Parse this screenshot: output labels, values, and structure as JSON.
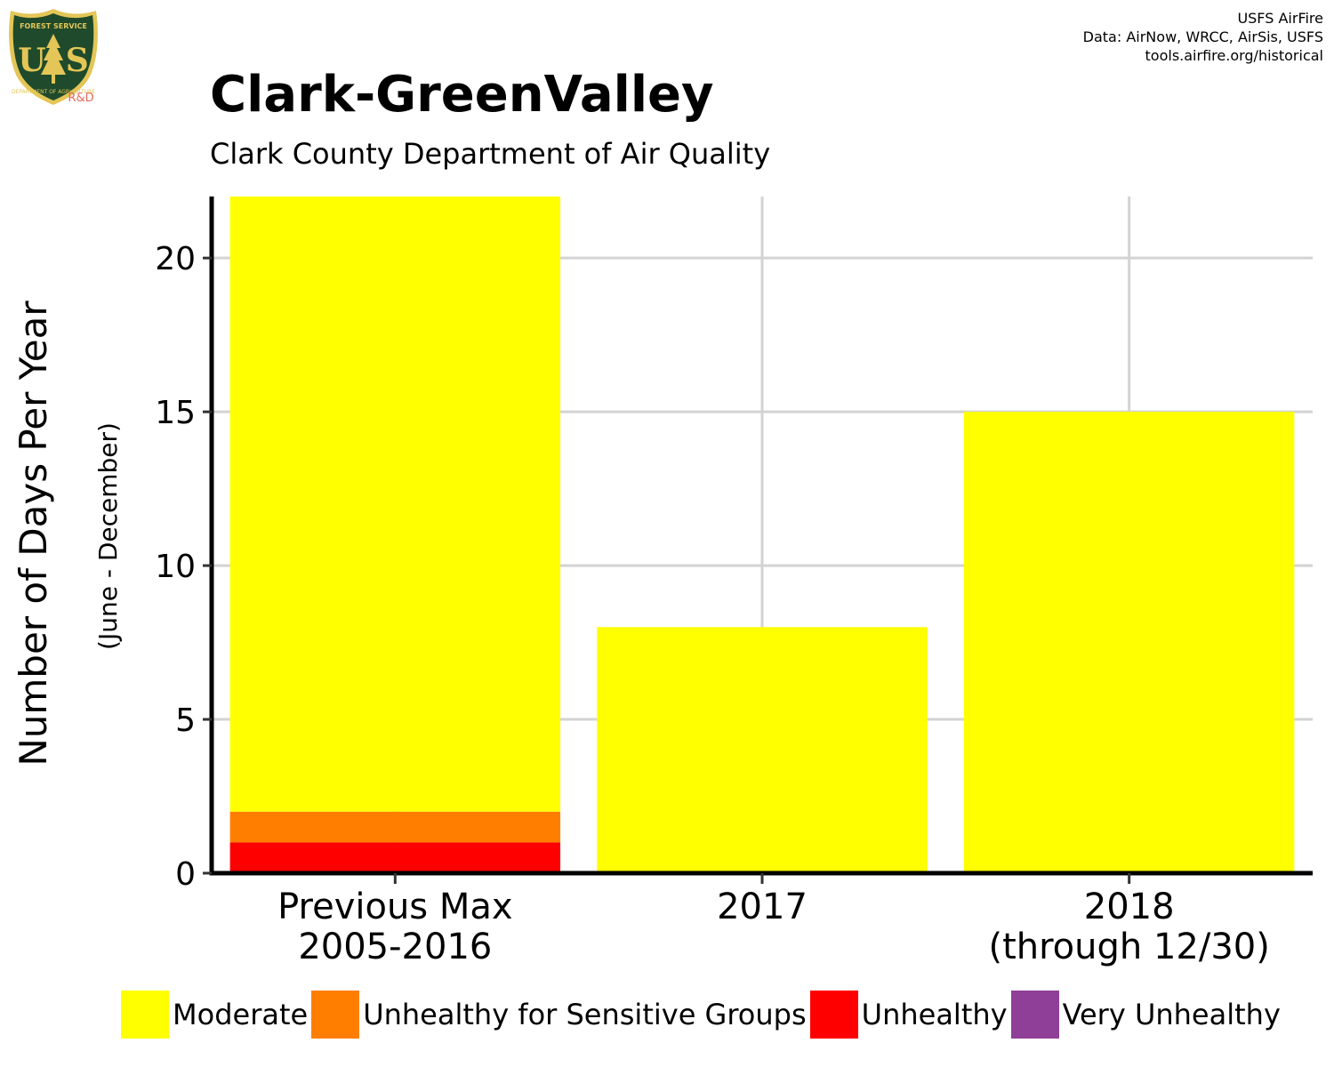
{
  "header": {
    "title": "Clark-GreenValley",
    "subtitle": "Clark County Department of Air Quality",
    "credits": [
      "USFS AirFire",
      "Data: AirNow, WRCC, AirSis, USFS",
      "tools.airfire.org/historical"
    ],
    "logo": {
      "top_text": "FOREST SERVICE",
      "letters": "US",
      "bottom_text": "DEPARTMENT OF AGRICULTURE",
      "tag": "R&D"
    }
  },
  "colors": {
    "Moderate": "#FFFF00",
    "Unhealthy for Sensitive Groups": "#FF7E00",
    "Unhealthy": "#FF0000",
    "Very Unhealthy": "#8F3F97",
    "grid": "#D3D3D3",
    "axis": "#000000",
    "logo_green": "#1F4A2B",
    "logo_gold": "#E3C657",
    "logo_tag": "#E86A5C"
  },
  "chart_data": {
    "type": "bar",
    "stacked": true,
    "categories": [
      [
        "Previous Max",
        "2005-2016"
      ],
      [
        "2017"
      ],
      [
        "2018",
        "(through 12/30)"
      ]
    ],
    "series": [
      {
        "name": "Unhealthy",
        "values": [
          1,
          0,
          0
        ]
      },
      {
        "name": "Unhealthy for Sensitive Groups",
        "values": [
          1,
          0,
          0
        ]
      },
      {
        "name": "Moderate",
        "values": [
          20,
          8,
          15
        ]
      },
      {
        "name": "Very Unhealthy",
        "values": [
          0,
          0,
          0
        ]
      }
    ],
    "ylabel": "Number of Days Per Year",
    "ylabel_sub": "(June - December)",
    "ylim": [
      0,
      22
    ],
    "yticks": [
      0,
      5,
      10,
      15,
      20
    ],
    "grid": true,
    "legend": {
      "position": "bottom",
      "entries": [
        "Moderate",
        "Unhealthy for Sensitive Groups",
        "Unhealthy",
        "Very Unhealthy"
      ]
    }
  }
}
